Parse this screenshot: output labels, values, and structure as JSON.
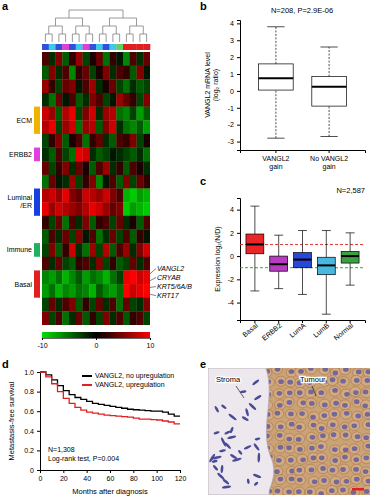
{
  "chart_data": [
    {
      "type": "heatmap",
      "title": "a",
      "cells": [
        [
          3,
          -2,
          5,
          -4,
          2,
          6,
          -3,
          1,
          4,
          -5,
          2,
          -1,
          -6,
          3,
          -2,
          4
        ],
        [
          -4,
          5,
          -2,
          3,
          -6,
          2,
          4,
          -3,
          1,
          5,
          -2,
          3,
          2,
          -4,
          5,
          -1
        ],
        [
          6,
          2,
          -3,
          4,
          5,
          -1,
          3,
          6,
          -2,
          1,
          4,
          -3,
          -5,
          -2,
          -4,
          -3
        ],
        [
          -2,
          -5,
          4,
          -1,
          3,
          -4,
          -2,
          5,
          3,
          -3,
          -1,
          6,
          4,
          2,
          -3,
          5
        ],
        [
          8,
          6,
          -4,
          7,
          9,
          -3,
          5,
          8,
          -2,
          6,
          7,
          -5,
          -6,
          -3,
          -7,
          -4
        ],
        [
          7,
          9,
          -3,
          6,
          8,
          -5,
          6,
          7,
          -4,
          5,
          8,
          -2,
          -5,
          -6,
          -4,
          -7
        ],
        [
          -3,
          2,
          5,
          -4,
          1,
          3,
          -5,
          2,
          4,
          -2,
          -4,
          3,
          2,
          5,
          -3,
          1
        ],
        [
          -2,
          -4,
          3,
          -3,
          -5,
          9,
          8,
          -2,
          -4,
          -3,
          -1,
          -2,
          -3,
          -4,
          -2,
          -5
        ],
        [
          4,
          -3,
          2,
          5,
          -2,
          4,
          1,
          -4,
          3,
          6,
          -2,
          2,
          -4,
          3,
          1,
          -2
        ],
        [
          -5,
          4,
          -1,
          -2,
          6,
          -3,
          2,
          5,
          -6,
          -1,
          3,
          -4,
          5,
          -3,
          4,
          2
        ],
        [
          7,
          8,
          6,
          9,
          5,
          4,
          8,
          7,
          6,
          8,
          5,
          3,
          -8,
          -9,
          -7,
          -8
        ],
        [
          9,
          6,
          8,
          7,
          6,
          5,
          7,
          9,
          8,
          6,
          4,
          5,
          -9,
          -7,
          -8,
          -9
        ],
        [
          2,
          -3,
          4,
          -5,
          3,
          -2,
          5,
          -4,
          2,
          3,
          -3,
          4,
          -2,
          1,
          -4,
          3
        ],
        [
          -4,
          3,
          -2,
          4,
          -3,
          5,
          -1,
          3,
          -5,
          -2,
          4,
          -3,
          3,
          -4,
          2,
          -1
        ],
        [
          -3,
          5,
          -4,
          2,
          8,
          -2,
          -5,
          6,
          -3,
          7,
          -4,
          3,
          6,
          -2,
          5,
          8
        ],
        [
          3,
          -2,
          4,
          -3,
          -4,
          2,
          3,
          -2,
          5,
          -3,
          2,
          -4,
          -3,
          4,
          -2,
          3
        ],
        [
          -6,
          -7,
          -5,
          -8,
          -6,
          -4,
          -7,
          -5,
          -6,
          -8,
          -5,
          -3,
          9,
          10,
          8,
          9
        ],
        [
          -7,
          -5,
          -8,
          -6,
          -7,
          -5,
          -6,
          -8,
          -4,
          -6,
          -7,
          -5,
          10,
          8,
          9,
          10
        ],
        [
          -3,
          4,
          -2,
          3,
          5,
          -4,
          2,
          -3,
          4,
          -2,
          3,
          -5,
          4,
          -3,
          -2,
          5
        ],
        [
          5,
          -3,
          3,
          -5,
          -2,
          4,
          -4,
          2,
          -3,
          5,
          -2,
          3,
          -4,
          2,
          3,
          -3
        ]
      ],
      "modules": [
        {
          "text": "ECM",
          "color": "#f0b400",
          "rows": [
            4,
            5
          ]
        },
        {
          "text": "ERBB2",
          "color": "#e040e0",
          "rows": [
            7,
            7
          ]
        },
        {
          "text": "Luminal/ER",
          "color": "#1840e0",
          "rows": [
            10,
            11
          ]
        },
        {
          "text": "Immune",
          "color": "#20b060",
          "rows": [
            14,
            14
          ]
        },
        {
          "text": "Basal",
          "color": "#e02020",
          "rows": [
            16,
            17
          ]
        }
      ],
      "genes": {
        "labels": [
          "VANGL2",
          "CRYAB",
          "KRT5/6A/B",
          "KRT17"
        ],
        "rows": [
          16,
          17
        ]
      },
      "colorbar": {
        "range": [
          -10,
          10
        ],
        "ticks": [
          -10,
          0,
          10
        ]
      }
    },
    {
      "type": "box",
      "title": "b",
      "subtitle": "N=208, P=2.9E-06",
      "y_label": "VANGL2 mRNA level (log₂ ratio)",
      "categories": [
        "VANGL2 gain",
        "No VANGL2 gain"
      ],
      "min": [
        -2.8,
        -2.7
      ],
      "q1": [
        0.05,
        -0.9
      ],
      "median": [
        0.75,
        0.25
      ],
      "q3": [
        1.6,
        0.85
      ],
      "max": [
        3.8,
        2.6
      ],
      "ylim": [
        -3.5,
        4.2
      ],
      "yticks": [
        -3,
        -2,
        -1,
        0,
        1,
        2,
        3,
        4
      ]
    },
    {
      "type": "box",
      "title": "c",
      "subtitle": "N=2,587",
      "y_label": "Expression log₂(N/D)",
      "categories": [
        "Basal",
        "ERBB2",
        "LumA",
        "LumB",
        "Normal"
      ],
      "colors": [
        "#e8262a",
        "#b83cc0",
        "#2848d8",
        "#48b8e0",
        "#3aa040"
      ],
      "min": [
        -3.0,
        -2.8,
        -3.3,
        -5.0,
        -2.5
      ],
      "q1": [
        0.2,
        -1.3,
        -1.0,
        -1.6,
        -0.6
      ],
      "median": [
        1.0,
        -0.7,
        -0.3,
        -0.8,
        0.0
      ],
      "q3": [
        1.9,
        0.0,
        0.3,
        -0.1,
        0.4
      ],
      "max": [
        4.3,
        1.8,
        2.2,
        2.2,
        2.0
      ],
      "reference_lines": [
        {
          "value": 1,
          "color": "#e02020"
        },
        {
          "value": -1,
          "color": "#20a020"
        }
      ],
      "ylim": [
        -5.5,
        5
      ],
      "yticks": [
        -4,
        -2,
        0,
        2,
        4
      ]
    },
    {
      "type": "line",
      "title": "d",
      "x_label": "Months after diagnosis",
      "y_label": "Metastasis-free survival",
      "x": [
        0,
        5,
        10,
        15,
        20,
        25,
        30,
        35,
        40,
        45,
        50,
        55,
        60,
        65,
        70,
        75,
        80,
        85,
        90,
        95,
        100,
        105,
        110,
        115,
        120
      ],
      "series": [
        {
          "name": "VANGL2, no upregulation",
          "color": "#000000",
          "values": [
            1,
            0.97,
            0.92,
            0.86,
            0.81,
            0.77,
            0.74,
            0.72,
            0.7,
            0.68,
            0.67,
            0.66,
            0.65,
            0.64,
            0.63,
            0.62,
            0.615,
            0.61,
            0.605,
            0.6,
            0.6,
            0.59,
            0.57,
            0.55,
            0.55
          ]
        },
        {
          "name": "VANGL2, upregulation",
          "color": "#e02020",
          "values": [
            1,
            0.95,
            0.88,
            0.8,
            0.73,
            0.68,
            0.64,
            0.61,
            0.59,
            0.58,
            0.57,
            0.56,
            0.555,
            0.55,
            0.545,
            0.54,
            0.53,
            0.52,
            0.52,
            0.515,
            0.51,
            0.5,
            0.49,
            0.47,
            0.47
          ]
        }
      ],
      "xlim": [
        0,
        120
      ],
      "xticks": [
        0,
        20,
        40,
        60,
        80,
        100,
        120
      ],
      "ylim": [
        0,
        1
      ],
      "yticks": [
        0,
        0.2,
        0.4,
        0.6,
        0.8,
        {
          "value": 1,
          "label": "1.0"
        }
      ],
      "legend": "top-right",
      "annotations": [
        "N=1,308",
        "Log-rank test, P=0.004"
      ]
    },
    {
      "type": "image",
      "title": "e",
      "annotations": [
        "Stroma",
        "Tumour"
      ]
    }
  ]
}
